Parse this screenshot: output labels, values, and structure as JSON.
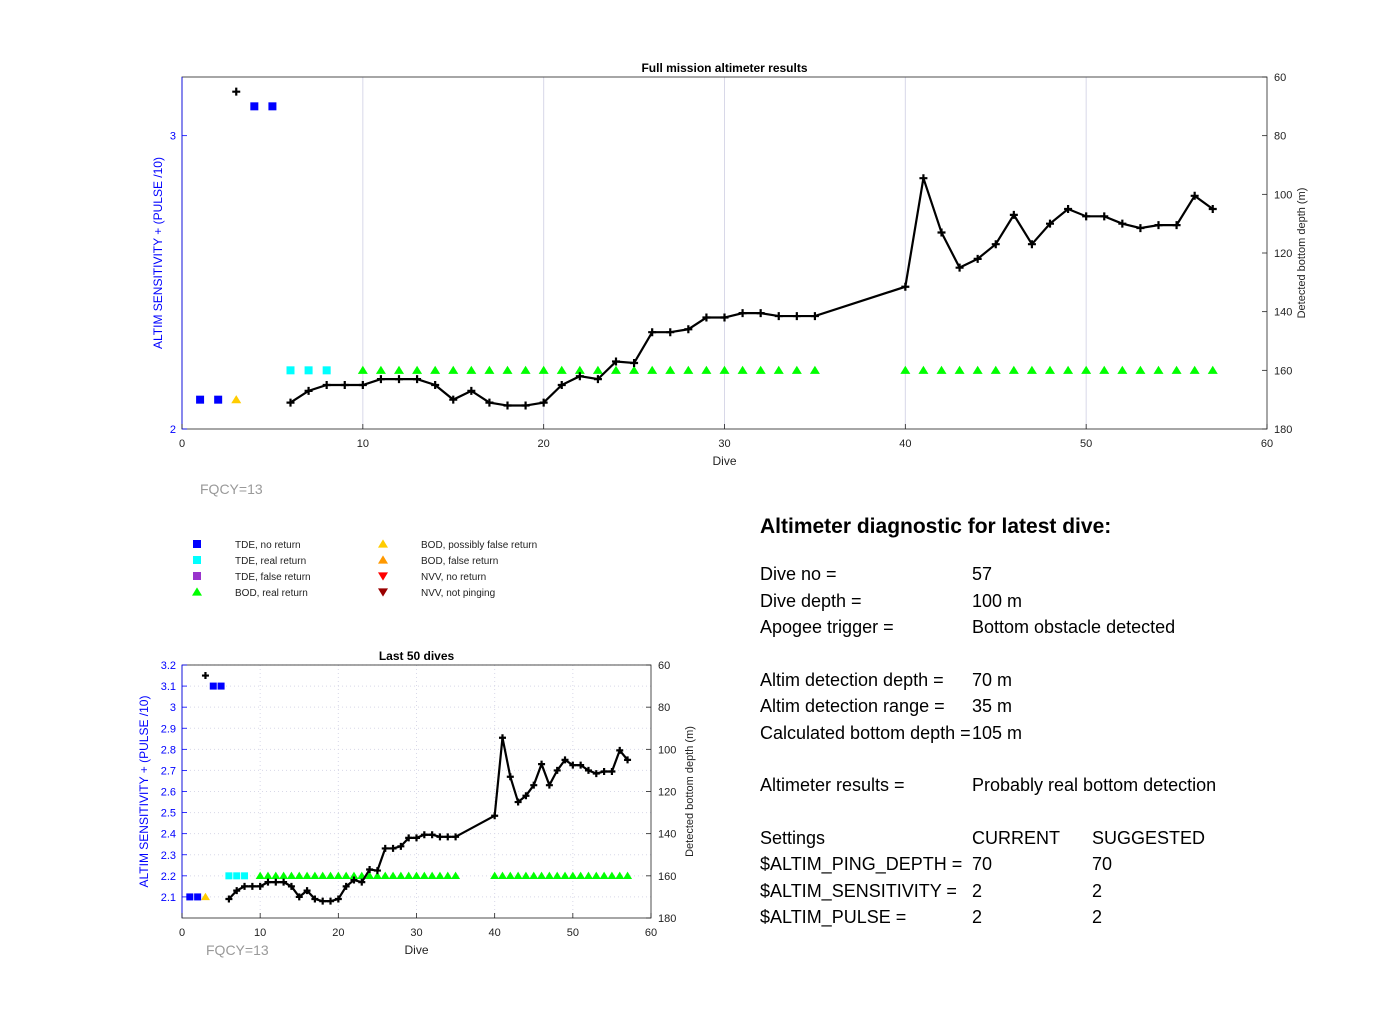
{
  "chart_data": [
    {
      "type": "line",
      "title": "Full mission altimeter results",
      "xlabel": "Dive",
      "ylabel_left": "ALTIM SENSITIVITY + (PULSE /10)",
      "ylabel_right": "Detected bottom depth (m)",
      "xlim": [
        0,
        60
      ],
      "ylim_left": [
        2,
        3.2
      ],
      "ylim_right": [
        60,
        180
      ],
      "right_axis_reversed": true,
      "xticks": [
        0,
        10,
        20,
        30,
        40,
        50,
        60
      ],
      "yticks_left": [
        2,
        3
      ],
      "yticks_right": [
        60,
        80,
        100,
        120,
        140,
        160,
        180
      ],
      "grid": "x-only",
      "annotation": "FQCY=13",
      "series": [
        {
          "name": "TDE, no return",
          "marker": "square",
          "color": "#0000ff",
          "x": [
            1,
            2,
            4,
            5
          ],
          "y": [
            2.1,
            2.1,
            3.1,
            3.1
          ]
        },
        {
          "name": "TDE, real return",
          "marker": "square",
          "color": "#00ffff",
          "x": [
            6,
            7,
            8
          ],
          "y": [
            2.2,
            2.2,
            2.2
          ]
        },
        {
          "name": "BOD, possibly false return",
          "marker": "triangle-up",
          "color": "#ffcc00",
          "x": [
            3
          ],
          "y": [
            2.1
          ]
        },
        {
          "name": "BOD, real return",
          "marker": "triangle-up",
          "color": "#00ff00",
          "x": [
            10,
            11,
            12,
            13,
            14,
            15,
            16,
            17,
            18,
            19,
            20,
            21,
            22,
            23,
            24,
            25,
            26,
            27,
            28,
            29,
            30,
            31,
            32,
            33,
            34,
            35,
            40,
            41,
            42,
            43,
            44,
            45,
            46,
            47,
            48,
            49,
            50,
            51,
            52,
            53,
            54,
            55,
            56,
            57
          ],
          "y": [
            2.2,
            2.2,
            2.2,
            2.2,
            2.2,
            2.2,
            2.2,
            2.2,
            2.2,
            2.2,
            2.2,
            2.2,
            2.2,
            2.2,
            2.2,
            2.2,
            2.2,
            2.2,
            2.2,
            2.2,
            2.2,
            2.2,
            2.2,
            2.2,
            2.2,
            2.2,
            2.2,
            2.2,
            2.2,
            2.2,
            2.2,
            2.2,
            2.2,
            2.2,
            2.2,
            2.2,
            2.2,
            2.2,
            2.2,
            2.2,
            2.2,
            2.2,
            2.2,
            2.2
          ]
        },
        {
          "name": "Detected bottom depth",
          "axis": "right",
          "marker": "plus",
          "color": "#000000",
          "x": [
            3,
            6,
            7,
            8,
            9,
            10,
            11,
            12,
            13,
            14,
            15,
            16,
            17,
            18,
            19,
            20,
            21,
            22,
            23,
            24,
            25,
            26,
            27,
            28,
            29,
            30,
            31,
            32,
            33,
            34,
            35,
            40,
            41,
            42,
            43,
            44,
            45,
            46,
            47,
            48,
            49,
            50,
            51,
            52,
            53,
            54,
            55,
            56,
            57
          ],
          "y": [
            65,
            171,
            167,
            165,
            165,
            165,
            163,
            163,
            163,
            165,
            170,
            167,
            171,
            172,
            172,
            171,
            165,
            162,
            163,
            157,
            157.5,
            147,
            147,
            146,
            142,
            142,
            140.5,
            140.5,
            141.5,
            141.5,
            141.5,
            131.5,
            94.5,
            113,
            125,
            122,
            117,
            107,
            117,
            110,
            105,
            107.5,
            107.5,
            110,
            111.5,
            110.5,
            110.5,
            100.5,
            105
          ],
          "line_from_x": 6
        }
      ]
    },
    {
      "type": "line",
      "title": "Last 50 dives",
      "xlabel": "Dive",
      "ylabel_left": "ALTIM SENSITIVITY + (PULSE /10)",
      "ylabel_right": "Detected bottom depth (m)",
      "xlim": [
        0,
        60
      ],
      "ylim_left": [
        2.0,
        3.2
      ],
      "ylim_right": [
        60,
        180
      ],
      "right_axis_reversed": true,
      "xticks": [
        0,
        10,
        20,
        30,
        40,
        50,
        60
      ],
      "yticks_left": [
        2.1,
        2.2,
        2.3,
        2.4,
        2.5,
        2.6,
        2.7,
        2.8,
        2.9,
        3,
        3.1,
        3.2
      ],
      "yticks_right": [
        60,
        80,
        100,
        120,
        140,
        160,
        180
      ],
      "grid": "both-dotted",
      "annotation": "FQCY=13",
      "same_series_as_full_mission": true
    }
  ],
  "legend": [
    {
      "label": "TDE, no return",
      "marker": "square",
      "color": "#0000ff"
    },
    {
      "label": "TDE, real return",
      "marker": "square",
      "color": "#00ffff"
    },
    {
      "label": "TDE, false return",
      "marker": "square",
      "color": "#9933cc"
    },
    {
      "label": "BOD, real return",
      "marker": "triangle-up",
      "color": "#00ff00"
    },
    {
      "label": "BOD, possibly false return",
      "marker": "triangle-up",
      "color": "#ffcc00"
    },
    {
      "label": "BOD, false return",
      "marker": "triangle-up",
      "color": "#ff9900"
    },
    {
      "label": "NVV, no return",
      "marker": "triangle-down",
      "color": "#ff0000"
    },
    {
      "label": "NVV, not pinging",
      "marker": "triangle-down",
      "color": "#990000"
    }
  ],
  "diagnostic": {
    "title": "Altimeter diagnostic for latest dive:",
    "dive_no_label": "Dive no =",
    "dive_no": "57",
    "dive_depth_label": "Dive depth =",
    "dive_depth": "100 m",
    "apogee_label": "Apogee trigger =",
    "apogee": "Bottom obstacle detected",
    "altim_depth_label": "Altim detection depth =",
    "altim_depth": "70 m",
    "altim_range_label": "Altim detection range =",
    "altim_range": "35 m",
    "calc_depth_label": "Calculated bottom depth =",
    "calc_depth": "105 m",
    "results_label": "Altimeter results =",
    "results": "Probably real bottom detection",
    "settings_label": "Settings",
    "current_label": "CURRENT",
    "suggested_label": "SUGGESTED",
    "settings": [
      {
        "name": "$ALTIM_PING_DEPTH =",
        "current": "70",
        "suggested": "70"
      },
      {
        "name": "$ALTIM_SENSITIVITY =",
        "current": "2",
        "suggested": "2"
      },
      {
        "name": "$ALTIM_PULSE =",
        "current": "2",
        "suggested": "2"
      }
    ]
  },
  "colors": {
    "left_axis": "#0000ff",
    "annotation": "#999999",
    "grid": "#d8d8e8"
  }
}
